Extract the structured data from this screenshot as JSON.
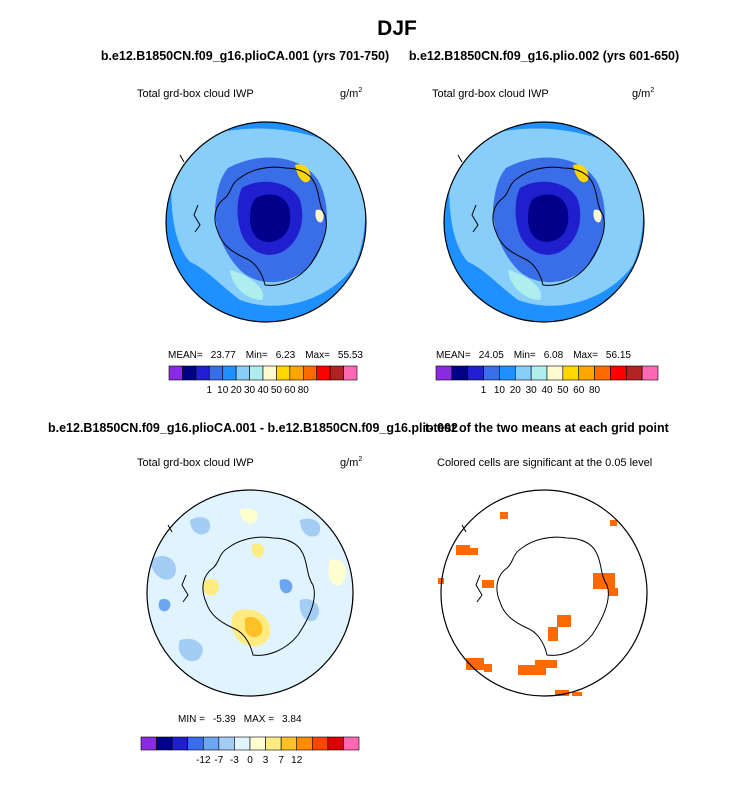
{
  "title": "DJF",
  "chart_data": [
    {
      "type": "heatmap",
      "title": "b.e12.B1850CN.f09_g16.plioCA.001 (yrs 701-750)",
      "variable": "Total grd-box cloud IWP",
      "units": "g/m",
      "units_exp": "2",
      "stats": {
        "mean_label": "MEAN=",
        "mean": "23.77",
        "min_label": "Min=",
        "min": "6.23",
        "max_label": "Max=",
        "max": "55.53"
      },
      "colorbar": {
        "labels": [
          "1",
          "10",
          "20",
          "30",
          "40",
          "50",
          "60",
          "80"
        ],
        "colors": [
          "#8a2be2",
          "#00008b",
          "#1f1fcd",
          "#3a6ee8",
          "#1e90ff",
          "#87cefa",
          "#afeeee",
          "#fffacd",
          "#ffd700",
          "#ffa500",
          "#ff6a00",
          "#ff0000",
          "#b22222",
          "#ff69b4"
        ]
      }
    },
    {
      "type": "heatmap",
      "title": "b.e12.B1850CN.f09_g16.plio.002 (yrs 601-650)",
      "variable": "Total grd-box cloud IWP",
      "units": "g/m",
      "units_exp": "2",
      "stats": {
        "mean_label": "MEAN=",
        "mean": "24.05",
        "min_label": "Min=",
        "min": "6.08",
        "max_label": "Max=",
        "max": "56.15"
      },
      "colorbar": {
        "labels": [
          "1",
          "10",
          "20",
          "30",
          "40",
          "50",
          "60",
          "80"
        ],
        "colors": [
          "#8a2be2",
          "#00008b",
          "#1f1fcd",
          "#3a6ee8",
          "#1e90ff",
          "#87cefa",
          "#afeeee",
          "#fffacd",
          "#ffd700",
          "#ffa500",
          "#ff6a00",
          "#ff0000",
          "#b22222",
          "#ff69b4"
        ]
      }
    },
    {
      "type": "heatmap",
      "title": "b.e12.B1850CN.f09_g16.plioCA.001 - b.e12.B1850CN.f09_g16.plio.002",
      "variable": "Total grd-box cloud IWP",
      "units": "g/m",
      "units_exp": "2",
      "stats": {
        "min_label": "MIN =",
        "min": "-5.39",
        "max_label": "MAX =",
        "max": "3.84"
      },
      "colorbar": {
        "labels": [
          "-12",
          "-7",
          "-3",
          "0",
          "3",
          "7",
          "12"
        ],
        "colors": [
          "#8a2be2",
          "#00008b",
          "#1f1fcd",
          "#3a6ee8",
          "#6ca6f0",
          "#a4cdf5",
          "#e0f4ff",
          "#ffffd0",
          "#ffeb80",
          "#ffc125",
          "#ff8c00",
          "#ff4500",
          "#dc0000",
          "#ff69b4"
        ]
      }
    },
    {
      "type": "heatmap",
      "title": "t-test of the two means at each grid point",
      "subtitle": "Colored cells are significant at the 0.05 level",
      "significant_color": "#ff6a00"
    }
  ]
}
